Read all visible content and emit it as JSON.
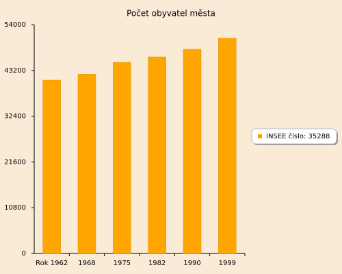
{
  "chart_data": {
    "type": "bar",
    "title": "Počet obyvatel města",
    "categories": [
      "Rok 1962",
      "1968",
      "1975",
      "1982",
      "1990",
      "1999"
    ],
    "series": [
      {
        "name": "INSEE číslo: 35288",
        "color": "#ffa500",
        "values": [
          40900,
          42300,
          45100,
          46400,
          48200,
          50800
        ]
      }
    ],
    "ylim": [
      0,
      54000
    ],
    "yticks": [
      0,
      10800,
      21600,
      32400,
      43200,
      54000
    ],
    "legend": "right"
  }
}
